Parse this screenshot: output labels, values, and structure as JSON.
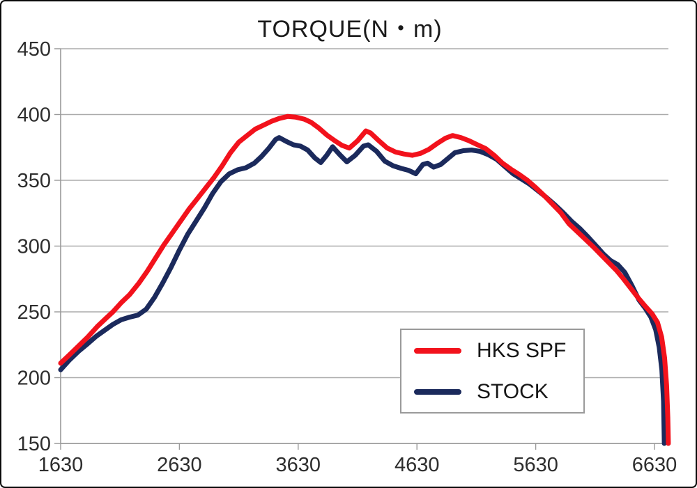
{
  "title": "TORQUE(N・m)",
  "legend": {
    "items": [
      {
        "label": "HKS SPF",
        "color": "#f2121c"
      },
      {
        "label": "STOCK",
        "color": "#1b2a5c"
      }
    ]
  },
  "colors": {
    "grid": "#ababab",
    "axis": "#9a9a9a",
    "tick_label": "#2e2e2e",
    "hks_red": "#f2121c",
    "stock_navy": "#1b2a5c"
  },
  "chart_data": {
    "type": "line",
    "title": "TORQUE(N・m)",
    "xlabel": "",
    "ylabel": "",
    "xlim": [
      1630,
      6750
    ],
    "ylim": [
      150,
      450
    ],
    "x_ticks": [
      1630,
      2630,
      3630,
      4630,
      5630,
      6630
    ],
    "y_ticks": [
      150,
      200,
      250,
      300,
      350,
      400,
      450
    ],
    "grid": "horizontal",
    "legend_position": "inset-bottom-right",
    "series": [
      {
        "name": "HKS SPF",
        "color": "#f2121c",
        "points": [
          [
            1630,
            211
          ],
          [
            1700,
            217
          ],
          [
            1780,
            224
          ],
          [
            1860,
            231
          ],
          [
            1940,
            239
          ],
          [
            2010,
            245
          ],
          [
            2070,
            250
          ],
          [
            2140,
            257
          ],
          [
            2210,
            263
          ],
          [
            2290,
            272
          ],
          [
            2360,
            281
          ],
          [
            2430,
            291
          ],
          [
            2500,
            301
          ],
          [
            2570,
            310
          ],
          [
            2640,
            319
          ],
          [
            2710,
            328
          ],
          [
            2780,
            336
          ],
          [
            2850,
            344
          ],
          [
            2920,
            352
          ],
          [
            2990,
            361
          ],
          [
            3060,
            371
          ],
          [
            3130,
            379
          ],
          [
            3200,
            384
          ],
          [
            3270,
            389
          ],
          [
            3340,
            392
          ],
          [
            3410,
            395
          ],
          [
            3470,
            397
          ],
          [
            3540,
            398.5
          ],
          [
            3610,
            398
          ],
          [
            3680,
            396.5
          ],
          [
            3740,
            394
          ],
          [
            3800,
            390
          ],
          [
            3870,
            384.5
          ],
          [
            3940,
            380
          ],
          [
            4000,
            376.5
          ],
          [
            4060,
            374.5
          ],
          [
            4130,
            380
          ],
          [
            4200,
            387.5
          ],
          [
            4240,
            386
          ],
          [
            4310,
            380
          ],
          [
            4380,
            374.5
          ],
          [
            4450,
            371.5
          ],
          [
            4520,
            370
          ],
          [
            4590,
            369
          ],
          [
            4660,
            370.5
          ],
          [
            4730,
            373.5
          ],
          [
            4800,
            378
          ],
          [
            4870,
            382
          ],
          [
            4930,
            384
          ],
          [
            5000,
            382.5
          ],
          [
            5070,
            380
          ],
          [
            5140,
            377
          ],
          [
            5210,
            374
          ],
          [
            5280,
            369
          ],
          [
            5350,
            363
          ],
          [
            5420,
            358.5
          ],
          [
            5490,
            354.5
          ],
          [
            5560,
            350
          ],
          [
            5630,
            344.5
          ],
          [
            5700,
            338.5
          ],
          [
            5770,
            332
          ],
          [
            5840,
            325.5
          ],
          [
            5910,
            317
          ],
          [
            5980,
            311
          ],
          [
            6050,
            305
          ],
          [
            6120,
            299
          ],
          [
            6190,
            292.5
          ],
          [
            6250,
            287
          ],
          [
            6310,
            281.5
          ],
          [
            6370,
            275
          ],
          [
            6430,
            268
          ],
          [
            6490,
            261
          ],
          [
            6550,
            254.5
          ],
          [
            6610,
            248.5
          ],
          [
            6655,
            242
          ],
          [
            6690,
            231
          ],
          [
            6715,
            215
          ],
          [
            6732,
            194
          ],
          [
            6742,
            170
          ],
          [
            6747,
            150
          ]
        ]
      },
      {
        "name": "STOCK",
        "color": "#1b2a5c",
        "points": [
          [
            1630,
            206
          ],
          [
            1700,
            213
          ],
          [
            1780,
            220
          ],
          [
            1860,
            226
          ],
          [
            1930,
            231.5
          ],
          [
            2000,
            236
          ],
          [
            2070,
            240.5
          ],
          [
            2140,
            244
          ],
          [
            2210,
            246
          ],
          [
            2280,
            247.5
          ],
          [
            2350,
            252
          ],
          [
            2420,
            261
          ],
          [
            2490,
            272
          ],
          [
            2560,
            284
          ],
          [
            2630,
            297
          ],
          [
            2700,
            309
          ],
          [
            2770,
            319
          ],
          [
            2840,
            329
          ],
          [
            2910,
            340
          ],
          [
            2980,
            349
          ],
          [
            3050,
            355
          ],
          [
            3120,
            358
          ],
          [
            3190,
            359.5
          ],
          [
            3260,
            363
          ],
          [
            3320,
            368
          ],
          [
            3380,
            374
          ],
          [
            3440,
            381
          ],
          [
            3470,
            382.5
          ],
          [
            3530,
            379.5
          ],
          [
            3590,
            377
          ],
          [
            3650,
            376
          ],
          [
            3710,
            373
          ],
          [
            3770,
            367
          ],
          [
            3820,
            363.5
          ],
          [
            3870,
            369
          ],
          [
            3920,
            375.5
          ],
          [
            3980,
            369.5
          ],
          [
            4040,
            364
          ],
          [
            4110,
            369
          ],
          [
            4180,
            376
          ],
          [
            4220,
            377
          ],
          [
            4290,
            372
          ],
          [
            4360,
            364.5
          ],
          [
            4430,
            361
          ],
          [
            4500,
            359
          ],
          [
            4560,
            357.5
          ],
          [
            4620,
            355
          ],
          [
            4680,
            362
          ],
          [
            4720,
            363
          ],
          [
            4770,
            360
          ],
          [
            4830,
            362
          ],
          [
            4890,
            366.5
          ],
          [
            4950,
            371
          ],
          [
            5020,
            372.5
          ],
          [
            5090,
            373
          ],
          [
            5160,
            372
          ],
          [
            5230,
            369.5
          ],
          [
            5300,
            366
          ],
          [
            5370,
            360.5
          ],
          [
            5440,
            355
          ],
          [
            5510,
            351
          ],
          [
            5580,
            347
          ],
          [
            5650,
            342
          ],
          [
            5720,
            337
          ],
          [
            5790,
            331.5
          ],
          [
            5860,
            325.5
          ],
          [
            5930,
            319
          ],
          [
            6000,
            313.5
          ],
          [
            6070,
            307
          ],
          [
            6140,
            300
          ],
          [
            6200,
            294
          ],
          [
            6260,
            289
          ],
          [
            6320,
            286
          ],
          [
            6380,
            280
          ],
          [
            6440,
            270
          ],
          [
            6500,
            259
          ],
          [
            6550,
            253
          ],
          [
            6600,
            246
          ],
          [
            6640,
            236.5
          ],
          [
            6670,
            223
          ],
          [
            6692,
            206
          ],
          [
            6706,
            182
          ],
          [
            6713,
            150
          ]
        ]
      }
    ]
  }
}
